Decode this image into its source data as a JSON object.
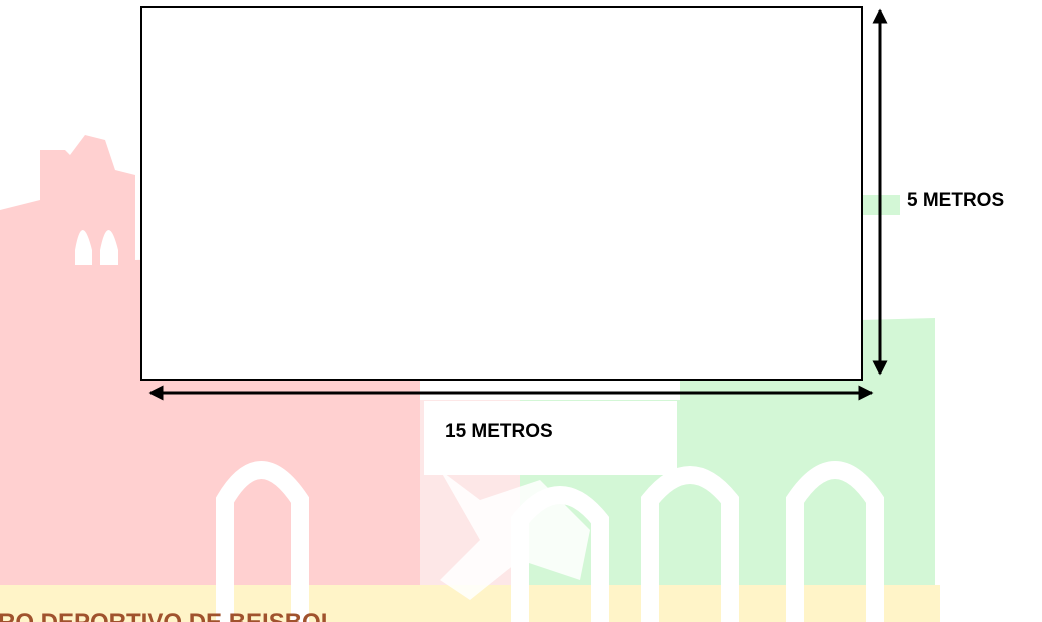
{
  "labels": {
    "height": "5 METROS",
    "width": "15 METROS"
  },
  "footer": "RO DEPORTIVO DE BEISBOL"
}
